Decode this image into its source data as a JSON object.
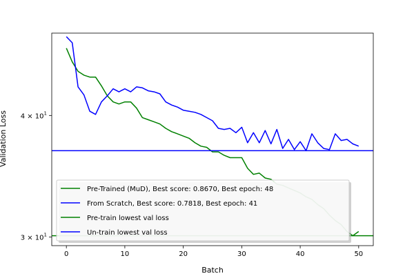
{
  "chart_data": {
    "type": "line",
    "xlabel": "Batch",
    "ylabel": "Validation Loss",
    "yscale": "log",
    "xlim": [
      -2.5,
      52.5
    ],
    "ylim": [
      29.4,
      48.6
    ],
    "xticks": [
      0,
      10,
      20,
      30,
      40,
      50
    ],
    "ytick_labels": [
      {
        "value": 40,
        "base": "4",
        "exp": "1"
      },
      {
        "value": 30,
        "base": "3",
        "exp": "1"
      }
    ],
    "legend_position": "lower-left",
    "series": [
      {
        "name": "Pre-Trained (MuD), Best score: 0.8670, Best epoch: 48",
        "color": "#008000",
        "x": [
          0,
          1,
          2,
          3,
          4,
          5,
          6,
          7,
          8,
          9,
          10,
          11,
          12,
          13,
          14,
          15,
          16,
          17,
          18,
          19,
          20,
          21,
          22,
          23,
          24,
          25,
          26,
          27,
          28,
          29,
          30,
          31,
          32,
          33,
          34,
          35,
          36,
          37,
          38,
          39,
          40,
          41,
          42,
          43,
          44,
          45,
          46,
          47,
          48,
          49,
          50
        ],
        "y": [
          46.9,
          45.4,
          44.4,
          44.0,
          43.8,
          43.8,
          42.9,
          41.9,
          41.3,
          41.1,
          41.3,
          41.3,
          40.7,
          39.8,
          39.6,
          39.4,
          39.2,
          38.8,
          38.5,
          38.3,
          38.1,
          37.9,
          37.5,
          37.2,
          37.1,
          36.7,
          36.7,
          36.4,
          36.2,
          36.2,
          36.2,
          35.3,
          34.8,
          34.9,
          34.5,
          34.4,
          34.0,
          33.9,
          33.7,
          33.5,
          33.3,
          33.0,
          32.8,
          32.4,
          32.1,
          31.6,
          31.2,
          30.9,
          30.4,
          30.1,
          30.4
        ]
      },
      {
        "name": "From Scratch, Best score: 0.7818, Best epoch: 41",
        "color": "#0000ff",
        "x": [
          0,
          1,
          2,
          3,
          4,
          5,
          6,
          7,
          8,
          9,
          10,
          11,
          12,
          13,
          14,
          15,
          16,
          17,
          18,
          19,
          20,
          21,
          22,
          23,
          24,
          25,
          26,
          27,
          28,
          29,
          30,
          31,
          32,
          33,
          34,
          35,
          36,
          37,
          38,
          39,
          40,
          41,
          42,
          43,
          44,
          45,
          46,
          47,
          48,
          49,
          50
        ],
        "y": [
          48.2,
          47.5,
          42.8,
          42.0,
          40.4,
          40.1,
          41.3,
          41.9,
          42.6,
          42.3,
          42.6,
          42.3,
          42.8,
          42.7,
          42.4,
          42.3,
          42.1,
          41.3,
          41.0,
          40.8,
          40.5,
          40.4,
          40.3,
          40.1,
          39.8,
          39.5,
          38.8,
          38.7,
          38.8,
          38.4,
          38.9,
          37.5,
          38.4,
          37.5,
          38.6,
          37.4,
          38.7,
          37.0,
          37.8,
          36.9,
          37.6,
          36.8,
          38.3,
          37.5,
          37.0,
          36.9,
          38.3,
          37.7,
          37.8,
          37.4,
          37.2
        ]
      },
      {
        "name": "Pre-train lowest val loss",
        "color": "#008000",
        "hline": 30.1
      },
      {
        "name": "Un-train lowest val loss",
        "color": "#0000ff",
        "hline": 36.8
      }
    ]
  }
}
